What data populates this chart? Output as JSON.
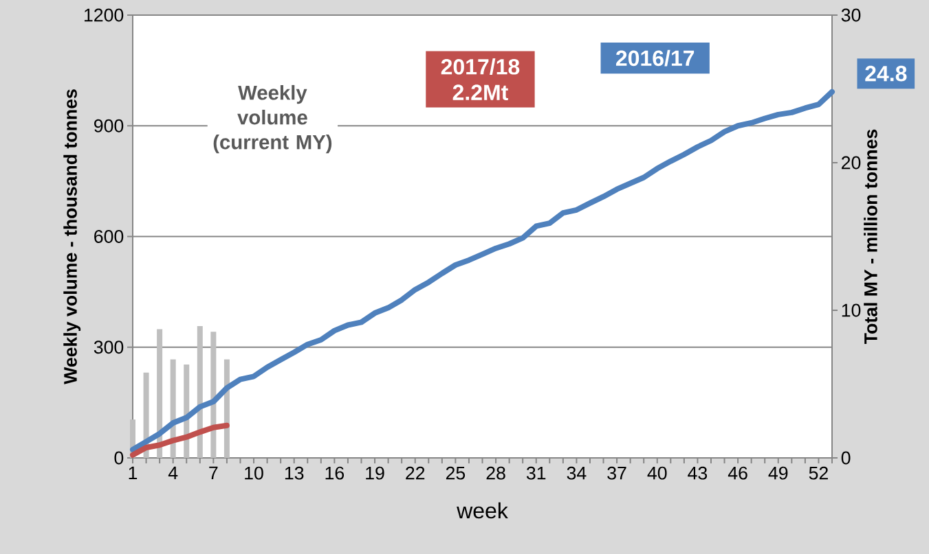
{
  "chart_data": {
    "type": "line",
    "xlabel": "week",
    "ylabel": "Weekly volume - thousand tonnes",
    "y2label": "Total MY - million tonnes",
    "x": [
      1,
      2,
      3,
      4,
      5,
      6,
      7,
      8,
      9,
      10,
      11,
      12,
      13,
      14,
      15,
      16,
      17,
      18,
      19,
      20,
      21,
      22,
      23,
      24,
      25,
      26,
      27,
      28,
      29,
      30,
      31,
      32,
      33,
      34,
      35,
      36,
      37,
      38,
      39,
      40,
      41,
      42,
      43,
      44,
      45,
      46,
      47,
      48,
      49,
      50,
      51,
      52,
      53
    ],
    "xlim": [
      1,
      53
    ],
    "xticks": [
      1,
      {
        "value": 2,
        "label": null
      },
      {
        "value": 3,
        "label": null
      },
      4,
      {
        "value": 5,
        "label": null
      },
      {
        "value": 6,
        "label": null
      },
      7,
      {
        "value": 8,
        "label": null
      },
      {
        "value": 9,
        "label": null
      },
      10,
      {
        "value": 11,
        "label": null
      },
      {
        "value": 12,
        "label": null
      },
      13,
      {
        "value": 14,
        "label": null
      },
      {
        "value": 15,
        "label": null
      },
      16,
      {
        "value": 17,
        "label": null
      },
      {
        "value": 18,
        "label": null
      },
      19,
      {
        "value": 20,
        "label": null
      },
      {
        "value": 21,
        "label": null
      },
      22,
      {
        "value": 23,
        "label": null
      },
      {
        "value": 24,
        "label": null
      },
      25,
      {
        "value": 26,
        "label": null
      },
      {
        "value": 27,
        "label": null
      },
      28,
      {
        "value": 29,
        "label": null
      },
      {
        "value": 30,
        "label": null
      },
      31,
      {
        "value": 32,
        "label": null
      },
      {
        "value": 33,
        "label": null
      },
      34,
      {
        "value": 35,
        "label": null
      },
      {
        "value": 36,
        "label": null
      },
      37,
      {
        "value": 38,
        "label": null
      },
      {
        "value": 39,
        "label": null
      },
      40,
      {
        "value": 41,
        "label": null
      },
      {
        "value": 42,
        "label": null
      },
      43,
      {
        "value": 44,
        "label": null
      },
      {
        "value": 45,
        "label": null
      },
      46,
      {
        "value": 47,
        "label": null
      },
      {
        "value": 48,
        "label": null
      },
      49,
      {
        "value": 50,
        "label": null
      },
      {
        "value": 51,
        "label": null
      },
      52,
      {
        "value": 53,
        "label": null
      }
    ],
    "ylim": [
      0,
      1200
    ],
    "yticks": [
      0,
      300,
      600,
      900,
      1200
    ],
    "y2lim": [
      0,
      30
    ],
    "y2ticks": [
      0,
      10,
      20,
      30
    ],
    "grid": "y",
    "series": [
      {
        "type": "bar",
        "color": "#bfbfbf",
        "x": [
          1,
          2,
          3,
          4,
          5,
          6,
          7,
          8
        ],
        "values": [
          104,
          231,
          349,
          267,
          253,
          357,
          342,
          267
        ]
      },
      {
        "name": "2016/17",
        "color": "#4f81bd",
        "axis": "y2",
        "values": [
          0.56,
          1.1,
          1.64,
          2.37,
          2.73,
          3.46,
          3.81,
          4.74,
          5.32,
          5.52,
          6.14,
          6.65,
          7.15,
          7.69,
          8.0,
          8.62,
          9.0,
          9.19,
          9.81,
          10.17,
          10.7,
          11.4,
          11.9,
          12.5,
          13.07,
          13.4,
          13.8,
          14.2,
          14.5,
          14.9,
          15.7,
          15.9,
          16.6,
          16.8,
          17.26,
          17.7,
          18.2,
          18.6,
          19.0,
          19.6,
          20.1,
          20.56,
          21.07,
          21.5,
          22.1,
          22.5,
          22.7,
          23.0,
          23.26,
          23.4,
          23.7,
          23.95,
          24.8
        ]
      },
      {
        "name": "2017/18",
        "color": "#c0504d",
        "axis": "y2",
        "x": [
          1,
          2,
          3,
          4,
          5,
          6,
          7,
          8
        ],
        "values": [
          0.2,
          0.7,
          0.87,
          1.18,
          1.41,
          1.75,
          2.06,
          2.2
        ]
      }
    ],
    "annotations": [
      "Weekly volume (current MY)",
      "2.2Mt",
      "24.8"
    ]
  }
}
